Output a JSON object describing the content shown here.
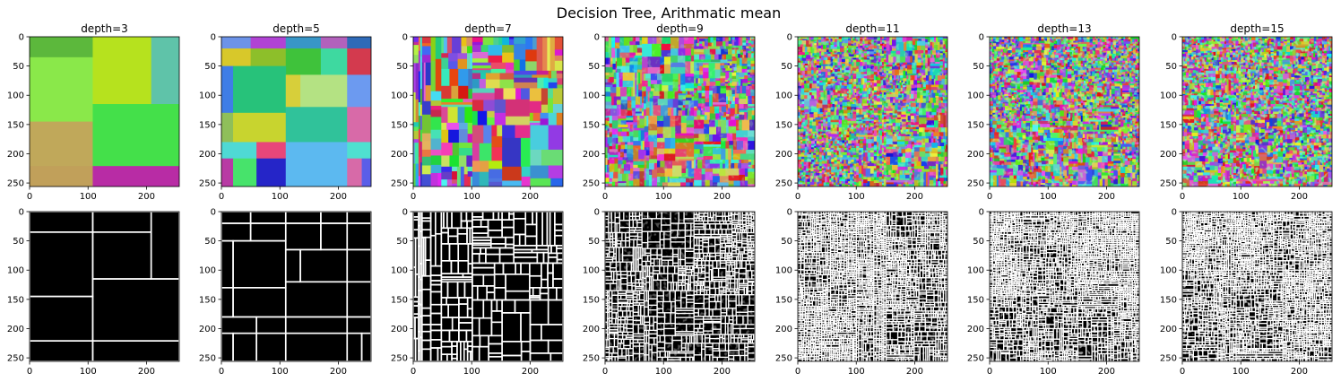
{
  "chart_data": {
    "type": "image-grid",
    "title": "Decision Tree, Arithmatic mean",
    "panel_titles": [
      "depth=3",
      "depth=5",
      "depth=7",
      "depth=9",
      "depth=11",
      "depth=13",
      "depth=15"
    ],
    "depths": [
      3,
      5,
      7,
      9,
      11,
      13,
      15
    ],
    "rows": [
      "segmented color image",
      "segment boundaries (white on black)"
    ],
    "xlim": [
      0,
      256
    ],
    "ylim": [
      256,
      0
    ],
    "x_ticks": [
      "0",
      "100",
      "200"
    ],
    "y_ticks": [
      "0",
      "50",
      "100",
      "150",
      "200",
      "250"
    ],
    "grid": false
  }
}
